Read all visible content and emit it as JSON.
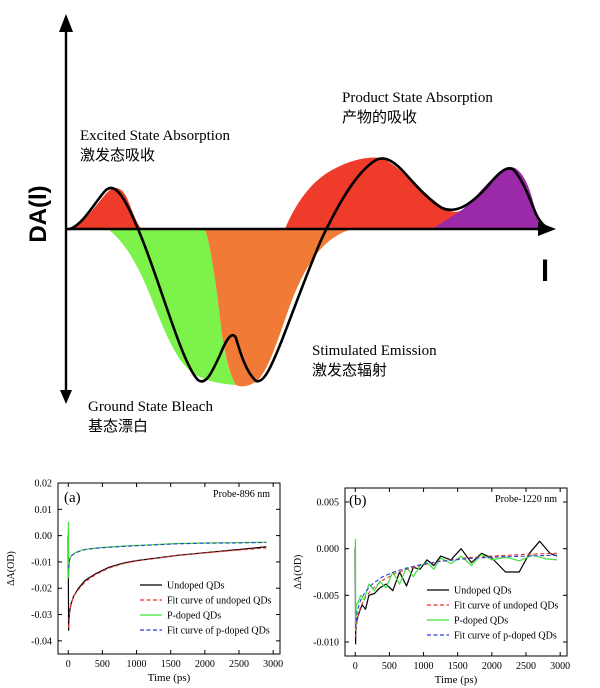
{
  "colors": {
    "absorption_red": "#ef3b2a",
    "bleach_green": "#7cf24a",
    "emission_orange": "#f07a36",
    "product_purple": "#9a2aa8",
    "curve": "#000000",
    "fit_red": "#e8352e",
    "fit_blue": "#2e3fd6",
    "pdoped_green": "#3fe13a"
  },
  "schematic": {
    "y_axis_label": "DA(l)",
    "x_axis_label": "l",
    "labels": {
      "esa_en": "Excited State Absorption",
      "esa_zh": "激发态吸收",
      "psa_en": "Product State Absorption",
      "psa_zh": "产物的吸收",
      "se_en": "Stimulated Emission",
      "se_zh": "激发态辐射",
      "gsb_en": "Ground State Bleach",
      "gsb_zh": "基态漂白"
    }
  },
  "chart_data": [
    {
      "type": "line",
      "panel_label": "(a)",
      "annotation": "Probe-896 nm",
      "xlabel": "Time (ps)",
      "ylabel": "ΔA(OD)",
      "xlim": [
        -150,
        3100
      ],
      "ylim": [
        -0.045,
        0.02
      ],
      "xticks": [
        0,
        500,
        1000,
        1500,
        2000,
        2500,
        3000
      ],
      "yticks": [
        0.02,
        0.01,
        0.0,
        -0.01,
        -0.02,
        -0.03,
        -0.04
      ],
      "ytick_labels": [
        "0.02",
        "0.01",
        "0.00",
        "-0.01",
        "-0.02",
        "-0.03",
        "-0.04"
      ],
      "legend_position": "bottom-right",
      "series": [
        {
          "name": "Undoped QDs",
          "color": "#000000",
          "style": "solid",
          "x": [
            0,
            5,
            10,
            20,
            40,
            80,
            150,
            250,
            400,
            600,
            800,
            1000,
            1300,
            1600,
            2000,
            2400,
            2800,
            2900
          ],
          "y": [
            0.0,
            -0.036,
            -0.032,
            -0.029,
            -0.026,
            -0.023,
            -0.02,
            -0.017,
            -0.0145,
            -0.012,
            -0.0105,
            -0.0095,
            -0.0085,
            -0.0075,
            -0.0065,
            -0.0055,
            -0.0045,
            -0.0042
          ]
        },
        {
          "name": "Fit curve of undoped QDs",
          "color": "#e8352e",
          "style": "dashed",
          "x": [
            5,
            20,
            40,
            80,
            150,
            250,
            400,
            600,
            800,
            1000,
            1300,
            1600,
            2000,
            2400,
            2800,
            2900
          ],
          "y": [
            -0.035,
            -0.0295,
            -0.026,
            -0.023,
            -0.0205,
            -0.0175,
            -0.0148,
            -0.0123,
            -0.0107,
            -0.0096,
            -0.0086,
            -0.0076,
            -0.0066,
            -0.0057,
            -0.0049,
            -0.0047
          ]
        },
        {
          "name": "P-doped QDs",
          "color": "#3fe13a",
          "style": "solid",
          "x": [
            0,
            3,
            6,
            10,
            20,
            50,
            100,
            200,
            300,
            500,
            800,
            1200,
            1600,
            2000,
            2400,
            2900
          ],
          "y": [
            0.0,
            0.005,
            -0.016,
            -0.012,
            -0.009,
            -0.0075,
            -0.0065,
            -0.0055,
            -0.005,
            -0.0045,
            -0.004,
            -0.0035,
            -0.003,
            -0.0028,
            -0.0027,
            -0.0025
          ]
        },
        {
          "name": "Fit curve of p-doped QDs",
          "color": "#2e3fd6",
          "style": "dashed",
          "x": [
            6,
            20,
            50,
            100,
            200,
            300,
            500,
            800,
            1200,
            1600,
            2000,
            2400,
            2900
          ],
          "y": [
            -0.0125,
            -0.009,
            -0.0076,
            -0.0066,
            -0.0056,
            -0.0051,
            -0.0046,
            -0.0041,
            -0.0036,
            -0.0031,
            -0.0029,
            -0.0028,
            -0.0026
          ]
        }
      ]
    },
    {
      "type": "line",
      "panel_label": "(b)",
      "annotation": "Probe-1220 nm",
      "xlabel": "Time (ps)",
      "ylabel": "ΔA(OD)",
      "xlim": [
        -150,
        3100
      ],
      "ylim": [
        -0.0115,
        0.0065
      ],
      "xticks": [
        0,
        500,
        1000,
        1500,
        2000,
        2500,
        3000
      ],
      "yticks": [
        0.005,
        0.0,
        -0.005,
        -0.01
      ],
      "ytick_labels": [
        "0.005",
        "0.000",
        "-0.005",
        "-0.010"
      ],
      "legend_position": "bottom-right",
      "series": [
        {
          "name": "Undoped QDs",
          "color": "#000000",
          "style": "solid",
          "x": [
            0,
            5,
            10,
            30,
            60,
            100,
            150,
            200,
            280,
            360,
            450,
            550,
            650,
            750,
            850,
            950,
            1050,
            1150,
            1250,
            1400,
            1550,
            1700,
            1850,
            2000,
            2200,
            2400,
            2550,
            2700,
            2850,
            2950
          ],
          "y": [
            0.0,
            -0.0102,
            -0.008,
            -0.0075,
            -0.0068,
            -0.006,
            -0.0065,
            -0.005,
            -0.0048,
            -0.0042,
            -0.0038,
            -0.0045,
            -0.0025,
            -0.004,
            -0.002,
            -0.0022,
            -0.0012,
            -0.0018,
            -0.0008,
            -0.0012,
            0.0,
            -0.0015,
            -0.0005,
            -0.001,
            -0.0025,
            -0.0025,
            -0.0005,
            0.0008,
            -0.0005,
            -0.0008
          ]
        },
        {
          "name": "Fit curve of undoped QDs",
          "color": "#e8352e",
          "style": "dashed",
          "x": [
            5,
            30,
            80,
            150,
            250,
            400,
            600,
            900,
            1200,
            1600,
            2000,
            2500,
            2950
          ],
          "y": [
            -0.0095,
            -0.0075,
            -0.0062,
            -0.0052,
            -0.0043,
            -0.0034,
            -0.0026,
            -0.0019,
            -0.0014,
            -0.001,
            -0.0008,
            -0.0006,
            -0.0005
          ]
        },
        {
          "name": "P-doped QDs",
          "color": "#3fe13a",
          "style": "solid",
          "x": [
            0,
            3,
            6,
            15,
            40,
            80,
            130,
            200,
            280,
            360,
            450,
            550,
            650,
            750,
            850,
            950,
            1050,
            1150,
            1250,
            1400,
            1550,
            1700,
            1850,
            2000,
            2200,
            2400,
            2600,
            2800,
            2950
          ],
          "y": [
            0.0,
            0.001,
            -0.0088,
            -0.006,
            -0.0058,
            -0.005,
            -0.0055,
            -0.0038,
            -0.0045,
            -0.0035,
            -0.0042,
            -0.0025,
            -0.0038,
            -0.002,
            -0.003,
            -0.0018,
            -0.0015,
            -0.0022,
            -0.001,
            -0.0016,
            -0.0008,
            -0.0018,
            -0.0006,
            -0.0012,
            -0.0009,
            -0.0013,
            -0.0007,
            -0.0011,
            -0.0012
          ]
        },
        {
          "name": "Fit curve of p-doped QDs",
          "color": "#2e3fd6",
          "style": "dashed",
          "x": [
            6,
            30,
            80,
            150,
            250,
            400,
            600,
            900,
            1200,
            1600,
            2000,
            2500,
            2950
          ],
          "y": [
            -0.0085,
            -0.0066,
            -0.0055,
            -0.0046,
            -0.0038,
            -0.003,
            -0.0024,
            -0.0018,
            -0.0014,
            -0.0011,
            -0.0009,
            -0.0008,
            -0.0007
          ]
        }
      ]
    }
  ]
}
